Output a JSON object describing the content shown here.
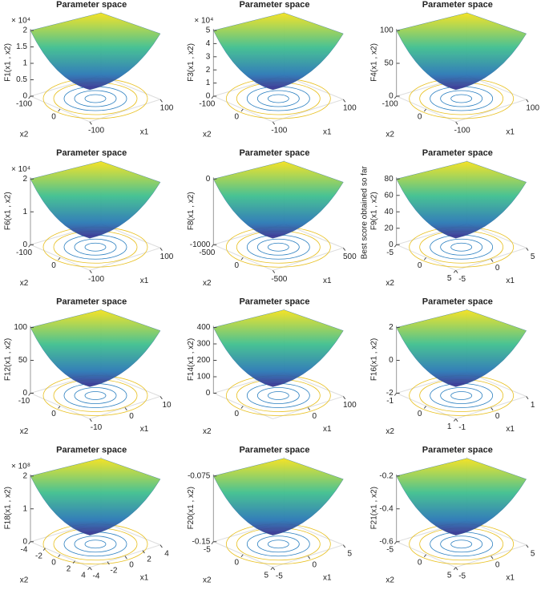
{
  "chart_data": [
    {
      "type": "surface",
      "title": "Parameter space",
      "zlabel": "F1(x1 , x2)",
      "xlabel": "x1",
      "ylabel": "x2",
      "exponent": "× 10⁴",
      "zlim": [
        0,
        2
      ],
      "zticks": [
        0,
        0.5,
        1,
        1.5,
        2
      ],
      "x1lim": [
        -100,
        100
      ],
      "x1ticks": [
        -100,
        100
      ],
      "x2lim": [
        -100,
        100
      ],
      "x2ticks": [
        -100,
        0
      ]
    },
    {
      "type": "surface",
      "title": "Parameter space",
      "zlabel": "F3(x1 , x2)",
      "xlabel": "x1",
      "ylabel": "x2",
      "exponent": "× 10⁴",
      "zlim": [
        0,
        5
      ],
      "zticks": [
        0,
        1,
        2,
        3,
        4,
        5
      ],
      "x1lim": [
        -100,
        100
      ],
      "x1ticks": [
        -100,
        100
      ],
      "x2lim": [
        -100,
        100
      ],
      "x2ticks": [
        -100,
        0
      ]
    },
    {
      "type": "surface",
      "title": "Parameter space",
      "zlabel": "F4(x1 , x2)",
      "xlabel": "x1",
      "ylabel": "x2",
      "zlim": [
        0,
        100
      ],
      "zticks": [
        0,
        50,
        100
      ],
      "x1lim": [
        -100,
        100
      ],
      "x1ticks": [
        -100,
        100
      ],
      "x2lim": [
        -100,
        100
      ],
      "x2ticks": [
        -100,
        0
      ]
    },
    {
      "type": "surface",
      "title": "Parameter space",
      "zlabel": "F6(x1 , x2)",
      "xlabel": "x1",
      "ylabel": "x2",
      "exponent": "× 10⁴",
      "zlim": [
        0,
        2
      ],
      "zticks": [
        0,
        1,
        2
      ],
      "x1lim": [
        -100,
        100
      ],
      "x1ticks": [
        -100,
        100
      ],
      "x2lim": [
        -100,
        100
      ],
      "x2ticks": [
        -100,
        0
      ]
    },
    {
      "type": "surface",
      "title": "Parameter space",
      "zlabel": "F8(x1 , x2)",
      "xlabel": "x1",
      "ylabel": "x2",
      "zlim": [
        -1000,
        0
      ],
      "zticks": [
        -1000,
        0
      ],
      "x1lim": [
        -500,
        500
      ],
      "x1ticks": [
        -500,
        500
      ],
      "x2lim": [
        -500,
        500
      ],
      "x2ticks": [
        -500,
        0
      ]
    },
    {
      "type": "surface",
      "title": "Parameter space",
      "zlabel": "F9(x1 , x2)",
      "xlabel": "x1",
      "ylabel": "x2",
      "annotation": "Best score obtained so far",
      "zlim": [
        0,
        80
      ],
      "zticks": [
        0,
        20,
        40,
        60,
        80
      ],
      "x1lim": [
        -5,
        5
      ],
      "x1ticks": [
        -5,
        0,
        5
      ],
      "x2lim": [
        -5,
        5
      ],
      "x2ticks": [
        -5,
        0,
        5
      ]
    },
    {
      "type": "surface",
      "title": "Parameter space",
      "zlabel": "F12(x1 , x2)",
      "xlabel": "x1",
      "ylabel": "x2",
      "zlim": [
        0,
        100
      ],
      "zticks": [
        0,
        50,
        100
      ],
      "x1lim": [
        -10,
        10
      ],
      "x1ticks": [
        -10,
        0,
        10
      ],
      "x2lim": [
        -10,
        10
      ],
      "x2ticks": [
        -10,
        0
      ]
    },
    {
      "type": "surface",
      "title": "Parameter space",
      "zlabel": "F14(x1 , x2)",
      "xlabel": "x1",
      "ylabel": "x2",
      "zlim": [
        0,
        400
      ],
      "zticks": [
        0,
        100,
        200,
        300,
        400
      ],
      "x1lim": [
        -100,
        100
      ],
      "x1ticks": [
        0,
        100
      ],
      "x2lim": [
        -100,
        100
      ],
      "x2ticks": [
        0
      ]
    },
    {
      "type": "surface",
      "title": "Parameter space",
      "zlabel": "F16(x1 , x2)",
      "xlabel": "x1",
      "ylabel": "x2",
      "zlim": [
        -2,
        2
      ],
      "zticks": [
        -2,
        0,
        2
      ],
      "x1lim": [
        -1,
        1
      ],
      "x1ticks": [
        -1,
        0,
        1
      ],
      "x2lim": [
        -1,
        1
      ],
      "x2ticks": [
        -1,
        0,
        1
      ]
    },
    {
      "type": "surface",
      "title": "Parameter space",
      "zlabel": "F18(x1 , x2)",
      "xlabel": "x1",
      "ylabel": "x2",
      "exponent": "× 10⁸",
      "zlim": [
        0,
        2
      ],
      "zticks": [
        0,
        1,
        2
      ],
      "x1lim": [
        -4,
        4
      ],
      "x1ticks": [
        -4,
        -2,
        0,
        2,
        4
      ],
      "x2lim": [
        -4,
        4
      ],
      "x2ticks": [
        -4,
        -2,
        0,
        2,
        4
      ]
    },
    {
      "type": "surface",
      "title": "Parameter space",
      "zlabel": "F20(x1 , x2)",
      "xlabel": "x1",
      "ylabel": "x2",
      "zlim": [
        -0.15,
        -0.075
      ],
      "zticks": [
        -0.15,
        -0.075
      ],
      "x1lim": [
        -5,
        5
      ],
      "x1ticks": [
        -5,
        0,
        5
      ],
      "x2lim": [
        -5,
        5
      ],
      "x2ticks": [
        -5,
        0,
        5
      ]
    },
    {
      "type": "surface",
      "title": "Parameter space",
      "zlabel": "F21(x1 , x2)",
      "xlabel": "x1",
      "ylabel": "x2",
      "zlim": [
        -0.6,
        -0.2
      ],
      "zticks": [
        -0.6,
        -0.4,
        -0.2
      ],
      "x1lim": [
        -5,
        5
      ],
      "x1ticks": [
        -5,
        0,
        5
      ],
      "x2lim": [
        -5,
        5
      ],
      "x2ticks": [
        -5,
        0,
        5
      ]
    }
  ]
}
